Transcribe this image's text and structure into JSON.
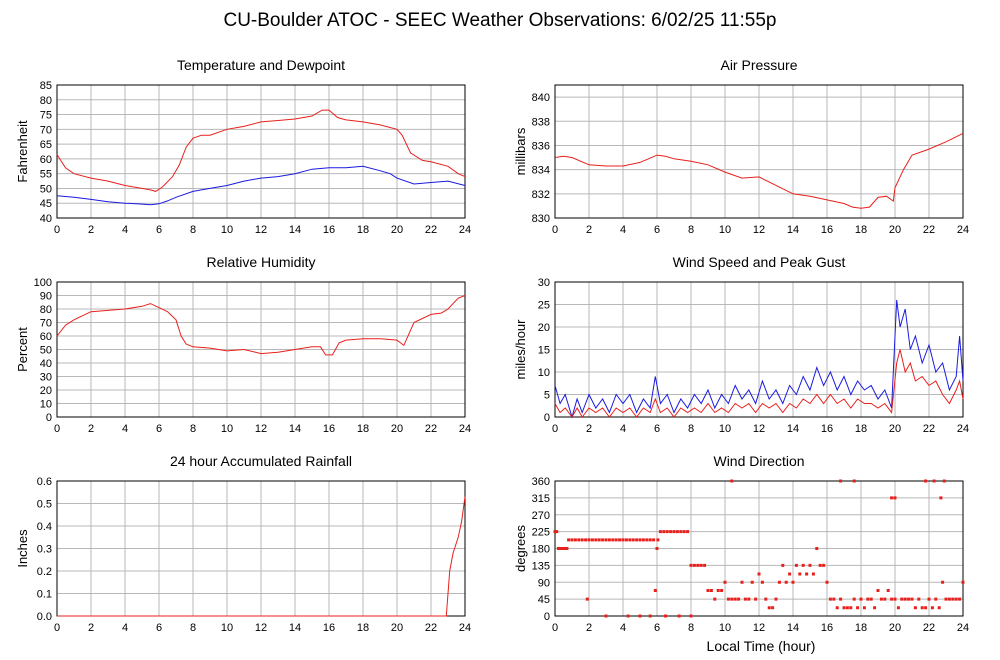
{
  "page_title": "CU-Boulder ATOC - SEEC Weather Observations: 6/02/25 11:55p",
  "shared_xlabel": "Local Time (hour)",
  "chart_data": [
    {
      "id": "temperature",
      "type": "line",
      "title": "Temperature and Dewpoint",
      "ylabel": "Fahrenheit",
      "xlim": [
        0,
        24
      ],
      "ylim": [
        40,
        85
      ],
      "yticks": [
        40,
        45,
        50,
        55,
        60,
        65,
        70,
        75,
        80,
        85
      ],
      "xticks": [
        0,
        2,
        4,
        6,
        8,
        10,
        12,
        14,
        16,
        18,
        20,
        22,
        24
      ],
      "grid": true,
      "series": [
        {
          "color": "#e8201c",
          "x": [
            0,
            0.5,
            1,
            2,
            3,
            4,
            5,
            5.5,
            5.8,
            6.2,
            6.8,
            7.2,
            7.6,
            8,
            8.5,
            9,
            10,
            11,
            12,
            13,
            14,
            15,
            15.6,
            16,
            16.5,
            17,
            18,
            19,
            20,
            20.3,
            20.8,
            21.5,
            22,
            23,
            23.6,
            24
          ],
          "y": [
            61.5,
            57,
            55,
            53.5,
            52.5,
            51,
            50,
            49.5,
            49,
            50.5,
            54,
            58,
            64,
            67,
            68,
            68,
            70,
            71,
            72.5,
            73,
            73.5,
            74.5,
            76.5,
            76.5,
            74,
            73.2,
            72.5,
            71.5,
            70,
            68,
            62,
            59.5,
            59,
            57.5,
            55,
            54
          ]
        },
        {
          "color": "#1a1ae0",
          "x": [
            0,
            1,
            2,
            3,
            4,
            5,
            5.5,
            6,
            6.5,
            7,
            8,
            9,
            10,
            11,
            12,
            13,
            14,
            15,
            16,
            17,
            18,
            19,
            19.6,
            20,
            21,
            22,
            23,
            24
          ],
          "y": [
            47.5,
            47,
            46.3,
            45.5,
            45,
            44.7,
            44.5,
            44.8,
            45.8,
            47,
            49,
            50,
            51,
            52.5,
            53.5,
            54,
            55,
            56.5,
            57,
            57,
            57.5,
            56,
            55,
            53.5,
            51.5,
            52,
            52.5,
            51
          ]
        }
      ]
    },
    {
      "id": "pressure",
      "type": "line",
      "title": "Air Pressure",
      "ylabel": "millibars",
      "xlim": [
        0,
        24
      ],
      "ylim": [
        830,
        841
      ],
      "yticks": [
        830,
        832,
        834,
        836,
        838,
        840
      ],
      "xticks": [
        0,
        2,
        4,
        6,
        8,
        10,
        12,
        14,
        16,
        18,
        20,
        22,
        24
      ],
      "grid": true,
      "series": [
        {
          "color": "#e8201c",
          "x": [
            0,
            0.5,
            1,
            2,
            3,
            4,
            5,
            5.5,
            6,
            6.5,
            7,
            8,
            9,
            10,
            11,
            12,
            13,
            14,
            15,
            16,
            17,
            17.5,
            18,
            18.5,
            19,
            19.5,
            19.9,
            20,
            20.5,
            21,
            22,
            23,
            24
          ],
          "y": [
            835,
            835.1,
            835,
            834.4,
            834.3,
            834.3,
            834.6,
            834.9,
            835.2,
            835.1,
            834.9,
            834.7,
            834.4,
            833.8,
            833.3,
            833.4,
            832.7,
            832,
            831.8,
            831.5,
            831.2,
            830.9,
            830.8,
            830.9,
            831.7,
            831.8,
            831.4,
            832.5,
            834,
            835.2,
            835.7,
            836.3,
            837
          ]
        }
      ]
    },
    {
      "id": "humidity",
      "type": "line",
      "title": "Relative Humidity",
      "ylabel": "Percent",
      "xlim": [
        0,
        24
      ],
      "ylim": [
        0,
        100
      ],
      "yticks": [
        0,
        10,
        20,
        30,
        40,
        50,
        60,
        70,
        80,
        90,
        100
      ],
      "xticks": [
        0,
        2,
        4,
        6,
        8,
        10,
        12,
        14,
        16,
        18,
        20,
        22,
        24
      ],
      "grid": true,
      "series": [
        {
          "color": "#e8201c",
          "x": [
            0,
            0.5,
            1,
            2,
            3,
            4,
            5,
            5.5,
            6,
            6.5,
            7,
            7.3,
            7.6,
            8,
            9,
            10,
            11,
            12,
            13,
            14,
            15,
            15.5,
            15.8,
            16.2,
            16.6,
            17,
            18,
            19,
            20,
            20.4,
            21,
            22,
            22.6,
            23,
            23.6,
            24
          ],
          "y": [
            60,
            68,
            72,
            78,
            79,
            80,
            82,
            84,
            81,
            78,
            72,
            60,
            54,
            52,
            51,
            49,
            50,
            47,
            48,
            50,
            52,
            52,
            46,
            46,
            55,
            57,
            58,
            58,
            57,
            53,
            70,
            76,
            77,
            80,
            88,
            90
          ]
        }
      ]
    },
    {
      "id": "wind",
      "type": "line",
      "title": "Wind Speed and Peak Gust",
      "ylabel": "miles/hour",
      "xlim": [
        0,
        24
      ],
      "ylim": [
        0,
        30
      ],
      "yticks": [
        0,
        5,
        10,
        15,
        20,
        25,
        30
      ],
      "xticks": [
        0,
        2,
        4,
        6,
        8,
        10,
        12,
        14,
        16,
        18,
        20,
        22,
        24
      ],
      "grid": true,
      "series": [
        {
          "color": "#1a1ae0",
          "x": [
            0,
            0.3,
            0.6,
            1,
            1.3,
            1.6,
            2,
            2.4,
            2.8,
            3.2,
            3.6,
            4,
            4.4,
            4.8,
            5.2,
            5.6,
            5.9,
            6.2,
            6.6,
            7,
            7.4,
            7.8,
            8.2,
            8.6,
            9,
            9.4,
            9.8,
            10.2,
            10.6,
            11,
            11.4,
            11.8,
            12.2,
            12.6,
            13,
            13.4,
            13.8,
            14.2,
            14.6,
            15,
            15.4,
            15.8,
            16.2,
            16.6,
            17,
            17.4,
            17.8,
            18.2,
            18.6,
            19,
            19.4,
            19.8,
            20.1,
            20.3,
            20.6,
            20.9,
            21.2,
            21.6,
            22,
            22.4,
            22.8,
            23.2,
            23.6,
            23.8,
            24
          ],
          "y": [
            7,
            3,
            5,
            0,
            4,
            1,
            5,
            2,
            4,
            1,
            5,
            3,
            5,
            1,
            4,
            2,
            9,
            3,
            5,
            1,
            4,
            2,
            5,
            3,
            6,
            2,
            5,
            3,
            7,
            4,
            6,
            3,
            8,
            4,
            6,
            3,
            7,
            5,
            9,
            6,
            11,
            7,
            10,
            6,
            9,
            5,
            8,
            6,
            7,
            4,
            6,
            2,
            26,
            20,
            24,
            15,
            18,
            12,
            16,
            10,
            12,
            6,
            9,
            18,
            8
          ]
        },
        {
          "color": "#e8201c",
          "x": [
            0,
            0.3,
            0.6,
            1,
            1.3,
            1.6,
            2,
            2.4,
            2.8,
            3.2,
            3.6,
            4,
            4.4,
            4.8,
            5.2,
            5.6,
            5.9,
            6.2,
            6.6,
            7,
            7.4,
            7.8,
            8.2,
            8.6,
            9,
            9.4,
            9.8,
            10.2,
            10.6,
            11,
            11.4,
            11.8,
            12.2,
            12.6,
            13,
            13.4,
            13.8,
            14.2,
            14.6,
            15,
            15.4,
            15.8,
            16.2,
            16.6,
            17,
            17.4,
            17.8,
            18.2,
            18.6,
            19,
            19.4,
            19.8,
            20.1,
            20.3,
            20.6,
            20.9,
            21.2,
            21.6,
            22,
            22.4,
            22.8,
            23.2,
            23.6,
            23.8,
            24
          ],
          "y": [
            3,
            1,
            2,
            0,
            2,
            0,
            2,
            1,
            2,
            0,
            2,
            1,
            2,
            0,
            2,
            1,
            4,
            1,
            2,
            0,
            2,
            1,
            2,
            1,
            3,
            1,
            2,
            1,
            3,
            2,
            3,
            1,
            3,
            2,
            3,
            1,
            3,
            2,
            4,
            3,
            5,
            3,
            5,
            3,
            4,
            2,
            4,
            3,
            3,
            2,
            3,
            1,
            12,
            15,
            10,
            12,
            8,
            9,
            7,
            8,
            5,
            3,
            6,
            8,
            4
          ]
        }
      ]
    },
    {
      "id": "rainfall",
      "type": "line",
      "title": "24 hour Accumulated Rainfall",
      "ylabel": "Inches",
      "xlim": [
        0,
        24
      ],
      "ylim": [
        0,
        0.6
      ],
      "yticks": [
        0.0,
        0.1,
        0.2,
        0.3,
        0.4,
        0.5,
        0.6
      ],
      "ytick_labels": [
        "0.0",
        "0.1",
        "0.2",
        "0.3",
        "0.4",
        "0.5",
        "0.6"
      ],
      "xticks": [
        0,
        2,
        4,
        6,
        8,
        10,
        12,
        14,
        16,
        18,
        20,
        22,
        24
      ],
      "grid": true,
      "series": [
        {
          "color": "#e8201c",
          "x": [
            0,
            22.9,
            23.1,
            23.3,
            23.6,
            23.8,
            24
          ],
          "y": [
            0,
            0,
            0.2,
            0.28,
            0.35,
            0.42,
            0.53
          ]
        }
      ]
    },
    {
      "id": "direction",
      "type": "scatter",
      "title": "Wind Direction",
      "ylabel": "degrees",
      "xlabel": "Local Time (hour)",
      "xlim": [
        0,
        24
      ],
      "ylim": [
        0,
        360
      ],
      "yticks": [
        0,
        45,
        90,
        135,
        180,
        225,
        270,
        315,
        360
      ],
      "xticks": [
        0,
        2,
        4,
        6,
        8,
        10,
        12,
        14,
        16,
        18,
        20,
        22,
        24
      ],
      "grid": true,
      "series": [
        {
          "color": "#e8201c",
          "x": [
            0,
            0.1,
            0.2,
            0.3,
            0.4,
            0.5,
            0.6,
            0.7,
            0.8,
            1,
            1.2,
            1.4,
            1.6,
            1.8,
            2,
            2.2,
            2.4,
            2.6,
            2.8,
            3,
            3.2,
            3.4,
            3.6,
            3.8,
            4,
            4.2,
            4.4,
            4.6,
            4.8,
            5,
            5.2,
            5.4,
            5.6,
            5.8,
            6,
            6.05,
            6.2,
            6.4,
            6.6,
            6.8,
            7,
            7.2,
            7.4,
            7.6,
            7.8,
            8,
            8.2,
            8.4,
            8.6,
            8.8,
            9,
            9.2,
            9.4,
            9.6,
            9.8,
            10,
            10.2,
            10.4,
            10.6,
            10.8,
            11,
            11.2,
            11.4,
            11.6,
            11.8,
            12,
            12.2,
            12.4,
            12.6,
            12.8,
            13,
            13.2,
            13.4,
            13.6,
            13.8,
            14,
            14.2,
            14.4,
            14.6,
            14.8,
            15,
            15.2,
            15.4,
            15.6,
            15.8,
            16,
            16.2,
            16.4,
            16.6,
            16.8,
            17,
            17.2,
            17.4,
            17.6,
            17.8,
            18,
            18.2,
            18.4,
            18.6,
            18.8,
            19,
            19.2,
            19.4,
            19.6,
            19.8,
            20,
            20.2,
            20.4,
            20.6,
            20.8,
            21,
            21.2,
            21.4,
            21.6,
            21.8,
            22,
            22.2,
            22.4,
            22.6,
            22.8,
            23,
            23.2,
            23.4,
            23.6,
            23.8,
            24,
            1.9,
            3,
            4.3,
            5,
            5.6,
            5.9,
            6.5,
            7.3,
            8,
            10.4,
            16.8,
            17.6,
            19.8,
            20,
            21.8,
            22.3,
            22.7,
            22.9
          ],
          "y": [
            225,
            225,
            180,
            180,
            180,
            180,
            180,
            180,
            203,
            203,
            203,
            203,
            203,
            203,
            203,
            203,
            203,
            203,
            203,
            203,
            203,
            203,
            203,
            203,
            203,
            203,
            203,
            203,
            203,
            203,
            203,
            203,
            203,
            203,
            180,
            203,
            225,
            225,
            225,
            225,
            225,
            225,
            225,
            225,
            225,
            135,
            135,
            135,
            135,
            135,
            68,
            68,
            45,
            68,
            68,
            90,
            45,
            45,
            45,
            45,
            90,
            45,
            45,
            90,
            45,
            112,
            90,
            45,
            22,
            22,
            45,
            90,
            135,
            90,
            112,
            90,
            135,
            112,
            135,
            112,
            135,
            112,
            180,
            135,
            135,
            90,
            45,
            45,
            22,
            45,
            22,
            22,
            22,
            45,
            22,
            45,
            22,
            45,
            45,
            22,
            68,
            45,
            45,
            68,
            45,
            45,
            22,
            45,
            45,
            45,
            45,
            22,
            45,
            22,
            22,
            45,
            22,
            45,
            22,
            90,
            45,
            45,
            45,
            45,
            45,
            90,
            45,
            0,
            0,
            0,
            0,
            68,
            0,
            0,
            0,
            360,
            360,
            360,
            315,
            315,
            360,
            360,
            315,
            360
          ]
        }
      ]
    }
  ]
}
